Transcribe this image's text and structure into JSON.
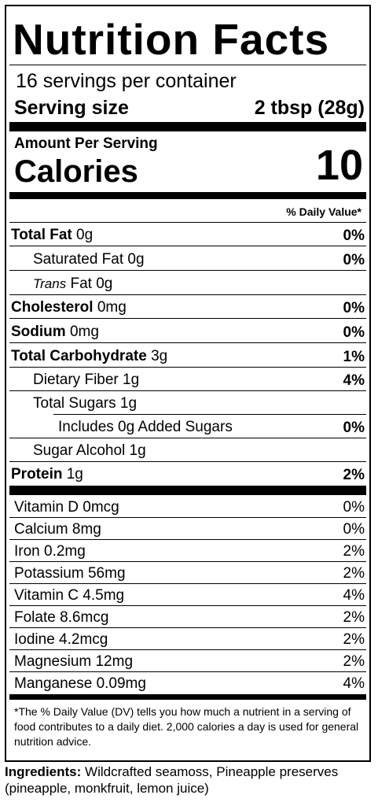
{
  "header": {
    "title": "Nutrition Facts",
    "servings": "16 servings per container",
    "serving_size_label": "Serving size",
    "serving_size_value": "2 tbsp (28g)",
    "amount_per_serving": "Amount Per Serving",
    "calories_label": "Calories",
    "calories_value": "10",
    "daily_value_header": "% Daily Value*"
  },
  "nutrients": [
    {
      "name": "Total Fat",
      "amount": "0g",
      "dv": "0%"
    },
    {
      "name": "Saturated Fat",
      "amount": "0g",
      "dv": "0%"
    },
    {
      "name": "Trans",
      "rest": "Fat 0g"
    },
    {
      "name": "Cholesterol",
      "amount": "0mg",
      "dv": "0%"
    },
    {
      "name": "Sodium",
      "amount": "0mg",
      "dv": "0%"
    },
    {
      "name": "Total Carbohydrate",
      "amount": "3g",
      "dv": "1%"
    },
    {
      "name": "Dietary Fiber",
      "amount": "1g",
      "dv": "4%"
    },
    {
      "name": "Total Sugars",
      "amount": "1g"
    },
    {
      "name": "Includes 0g Added Sugars",
      "dv": "0%"
    },
    {
      "name": "Sugar Alcohol",
      "amount": "1g"
    },
    {
      "name": "Protein",
      "amount": "1g",
      "dv": "2%"
    }
  ],
  "vitamins": [
    {
      "label": "Vitamin D 0mcg",
      "dv": "0%"
    },
    {
      "label": "Calcium 8mg",
      "dv": "0%"
    },
    {
      "label": "Iron 0.2mg",
      "dv": "2%"
    },
    {
      "label": "Potassium 56mg",
      "dv": "2%"
    },
    {
      "label": "Vitamin C 4.5mg",
      "dv": "4%"
    },
    {
      "label": "Folate 8.6mcg",
      "dv": "2%"
    },
    {
      "label": "Iodine 4.2mcg",
      "dv": "2%"
    },
    {
      "label": "Magnesium 12mg",
      "dv": "2%"
    },
    {
      "label": "Manganese 0.09mg",
      "dv": "4%"
    }
  ],
  "footnote": "*The % Daily Value (DV) tells you how much a nutrient in a serving of food contributes to a daily diet. 2,000 calories a day is used for general nutrition advice.",
  "ingredients": {
    "label": "Ingredients:",
    "text": "Wildcrafted seamoss, Pineapple preserves (pineapple, monkfruit, lemon juice)"
  }
}
